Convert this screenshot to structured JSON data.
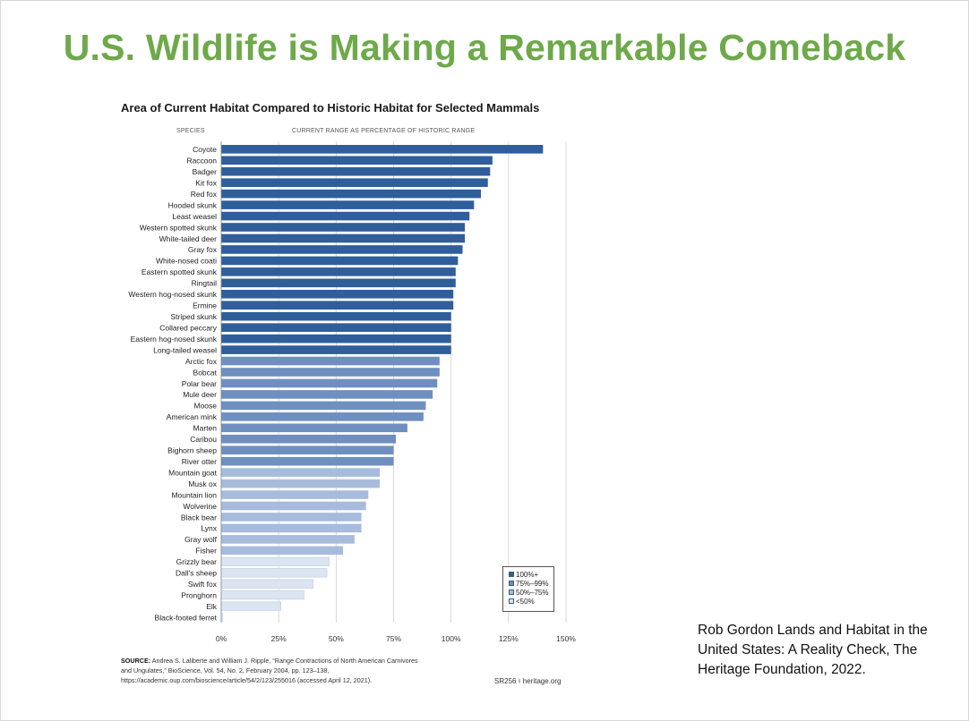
{
  "slide": {
    "title": "U.S. Wildlife is Making a Remarkable Comeback",
    "citation": "Rob Gordon Lands and Habitat in the United States: A Reality Check, The Heritage Foundation, 2022."
  },
  "source": {
    "label": "SOURCE:",
    "text": "Andrea S. Laliberte and William J. Ripple, “Range Contractions of North American Carnivores and Ungulates,” BioScience, Vol. 54, No. 2, February 2004, pp. 123–138, https://academic.oup.com/bioscience/article/54/2/123/255016 (accessed April 12, 2021).",
    "report_id": "SR256",
    "site": "heritage.org",
    "site_icon": "heritage-bell-icon"
  },
  "colors": {
    "title_green": "#6ea94a",
    "group_100_plus": "#2f5e9b",
    "group_75_99": "#6e8fc0",
    "group_50_75": "#a7bcdc",
    "group_lt50": "#dbe4f1"
  },
  "chart_data": {
    "type": "bar",
    "orientation": "horizontal",
    "title": "Area of Current Habitat Compared to Historic Habitat for Selected Mammals",
    "category_header": "SPECIES",
    "value_header": "CURRENT RANGE AS PERCENTAGE OF HISTORIC RANGE",
    "xlim": [
      0,
      150
    ],
    "xticks": [
      "0%",
      "25%",
      "50%",
      "75%",
      "100%",
      "125%",
      "150%"
    ],
    "grid": "vertical",
    "legend_position": "bottom-right",
    "legend": [
      {
        "label": "100%+",
        "group": "group_100_plus"
      },
      {
        "label": "75%–99%",
        "group": "group_75_99"
      },
      {
        "label": "50%–75%",
        "group": "group_50_75"
      },
      {
        "label": "<50%",
        "group": "group_lt50"
      }
    ],
    "bars": [
      {
        "species": "Coyote",
        "value": 140,
        "group": "group_100_plus"
      },
      {
        "species": "Raccoon",
        "value": 118,
        "group": "group_100_plus"
      },
      {
        "species": "Badger",
        "value": 117,
        "group": "group_100_plus"
      },
      {
        "species": "Kit fox",
        "value": 116,
        "group": "group_100_plus"
      },
      {
        "species": "Red fox",
        "value": 113,
        "group": "group_100_plus"
      },
      {
        "species": "Hooded skunk",
        "value": 110,
        "group": "group_100_plus"
      },
      {
        "species": "Least weasel",
        "value": 108,
        "group": "group_100_plus"
      },
      {
        "species": "Western spotted skunk",
        "value": 106,
        "group": "group_100_plus"
      },
      {
        "species": "White-tailed deer",
        "value": 106,
        "group": "group_100_plus"
      },
      {
        "species": "Gray fox",
        "value": 105,
        "group": "group_100_plus"
      },
      {
        "species": "White-nosed coati",
        "value": 103,
        "group": "group_100_plus"
      },
      {
        "species": "Eastern spotted skunk",
        "value": 102,
        "group": "group_100_plus"
      },
      {
        "species": "Ringtail",
        "value": 102,
        "group": "group_100_plus"
      },
      {
        "species": "Western hog-nosed skunk",
        "value": 101,
        "group": "group_100_plus"
      },
      {
        "species": "Ermine",
        "value": 101,
        "group": "group_100_plus"
      },
      {
        "species": "Striped skunk",
        "value": 100,
        "group": "group_100_plus"
      },
      {
        "species": "Collared peccary",
        "value": 100,
        "group": "group_100_plus"
      },
      {
        "species": "Eastern hog-nosed skunk",
        "value": 100,
        "group": "group_100_plus"
      },
      {
        "species": "Long-tailed weasel",
        "value": 100,
        "group": "group_100_plus"
      },
      {
        "species": "Arctic fox",
        "value": 95,
        "group": "group_75_99"
      },
      {
        "species": "Bobcat",
        "value": 95,
        "group": "group_75_99"
      },
      {
        "species": "Polar bear",
        "value": 94,
        "group": "group_75_99"
      },
      {
        "species": "Mule deer",
        "value": 92,
        "group": "group_75_99"
      },
      {
        "species": "Moose",
        "value": 89,
        "group": "group_75_99"
      },
      {
        "species": "American mink",
        "value": 88,
        "group": "group_75_99"
      },
      {
        "species": "Marten",
        "value": 81,
        "group": "group_75_99"
      },
      {
        "species": "Caribou",
        "value": 76,
        "group": "group_75_99"
      },
      {
        "species": "Bighorn sheep",
        "value": 75,
        "group": "group_75_99"
      },
      {
        "species": "River otter",
        "value": 75,
        "group": "group_75_99"
      },
      {
        "species": "Mountain goat",
        "value": 69,
        "group": "group_50_75"
      },
      {
        "species": "Musk ox",
        "value": 69,
        "group": "group_50_75"
      },
      {
        "species": "Mountain lion",
        "value": 64,
        "group": "group_50_75"
      },
      {
        "species": "Wolverine",
        "value": 63,
        "group": "group_50_75"
      },
      {
        "species": "Black bear",
        "value": 61,
        "group": "group_50_75"
      },
      {
        "species": "Lynx",
        "value": 61,
        "group": "group_50_75"
      },
      {
        "species": "Gray wolf",
        "value": 58,
        "group": "group_50_75"
      },
      {
        "species": "Fisher",
        "value": 53,
        "group": "group_50_75"
      },
      {
        "species": "Grizzly bear",
        "value": 47,
        "group": "group_lt50"
      },
      {
        "species": "Dall's sheep",
        "value": 46,
        "group": "group_lt50"
      },
      {
        "species": "Swift fox",
        "value": 40,
        "group": "group_lt50"
      },
      {
        "species": "Pronghorn",
        "value": 36,
        "group": "group_lt50"
      },
      {
        "species": "Elk",
        "value": 26,
        "group": "group_lt50"
      },
      {
        "species": "Black-footed ferret",
        "value": 0.5,
        "group": "group_lt50"
      }
    ]
  }
}
